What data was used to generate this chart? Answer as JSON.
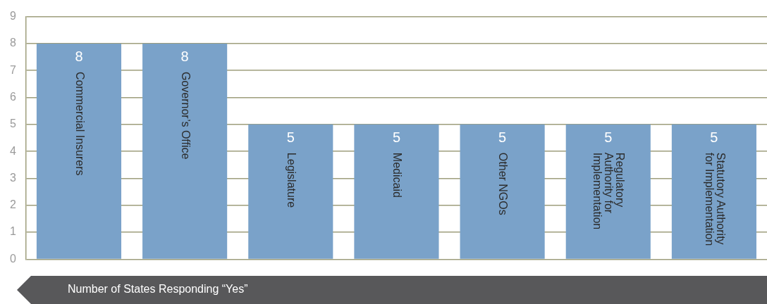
{
  "chart_data": {
    "type": "bar",
    "xlabel": "Number of States Responding “Yes”",
    "categories": [
      "Commercial Insurers",
      "Governor’s Office",
      "Legislature",
      "Medicaid",
      "Other NGOs",
      "Regulatory Authority for Implementation",
      "Statutory Authority for Implementation"
    ],
    "values": [
      8,
      8,
      5,
      5,
      5,
      5,
      5
    ],
    "color": "#7aa2c9",
    "ylim": [
      0,
      9
    ],
    "yticks": [
      0,
      1,
      2,
      3,
      4,
      5,
      6,
      7,
      8,
      9
    ],
    "grid": "y",
    "data_labels": true,
    "legend": false
  }
}
